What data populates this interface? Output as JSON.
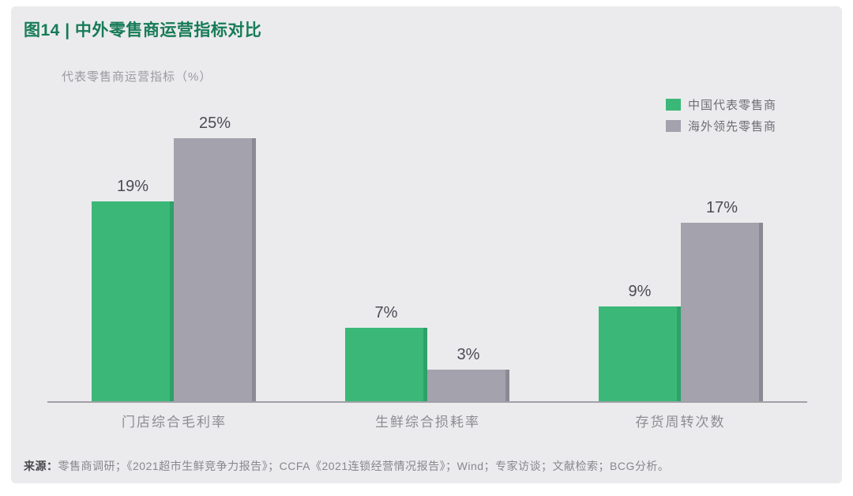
{
  "figure": {
    "title": "图14 | 中外零售商运营指标对比",
    "source_label": "来源：",
    "source_text": "零售商调研；《2021超市生鲜竞争力报告》；CCFA《2021连锁经营情况报告》；Wind；专家访谈；文献检索；BCG分析。"
  },
  "colors": {
    "panel_background": "#ebebed",
    "title_green": "#177b57",
    "axis_line": "#a0a0a8",
    "value_label": "#4b4b54",
    "category_label": "#8c8c93"
  },
  "chart_data": {
    "type": "bar",
    "title": "图14 | 中外零售商运营指标对比",
    "ylabel": "代表零售商运营指标（%）",
    "categories": [
      "门店综合毛利率",
      "生鲜综合损耗率",
      "存货周转次数"
    ],
    "series": [
      {
        "name": "中国代表零售商",
        "color": "#3bb878",
        "edge_color": "#2da167",
        "values": [
          19,
          7,
          9
        ]
      },
      {
        "name": "海外领先零售商",
        "color": "#a3a2ad",
        "edge_color": "#8a8a94",
        "values": [
          25,
          3,
          17
        ]
      }
    ],
    "value_suffix": "%",
    "ylim": [
      0,
      27
    ],
    "grid": false,
    "legend_position": "top-right",
    "data_labels": true
  }
}
